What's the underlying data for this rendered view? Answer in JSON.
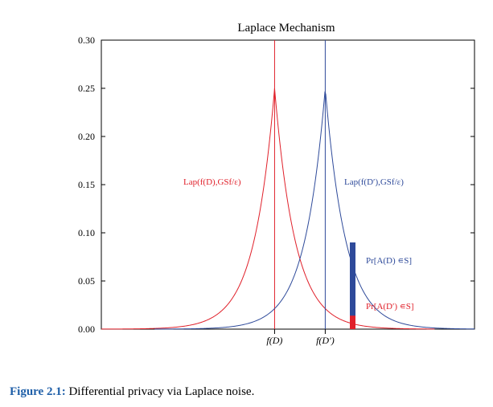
{
  "chart_data": {
    "type": "line",
    "title": "Laplace Mechanism",
    "xlabel": "",
    "ylabel": "",
    "ylim": [
      0,
      0.3
    ],
    "xlim": [
      -5.2,
      6.0
    ],
    "yticks": [
      "0.00",
      "0.05",
      "0.10",
      "0.15",
      "0.20",
      "0.25",
      "0.30"
    ],
    "xticks": [
      {
        "x": 0,
        "label": "f(D)"
      },
      {
        "x": 1.52,
        "label": "f(D′)"
      }
    ],
    "grid": false,
    "series": [
      {
        "name": "Lap(f(D),GSf/ε)",
        "color": "#e0202a",
        "center": 0,
        "scale": 2,
        "x_range": [
          -5.2,
          4.8
        ]
      },
      {
        "name": "Lap(f(D′),GSf/ε)",
        "color": "#2e4a9a",
        "center": 1.52,
        "scale": 2,
        "x_range": [
          -3.6,
          6.0
        ]
      }
    ],
    "bars": [
      {
        "x": 2.3,
        "y": 0.09,
        "label": "Pr[A(D) ∊S]",
        "color": "#2e4a9a"
      },
      {
        "x": 2.3,
        "y": 0.014,
        "label": "Pr[A(D′) ∊S]",
        "color": "#e0202a"
      }
    ]
  },
  "caption": {
    "label": "Figure 2.1:",
    "text": "Differential privacy via Laplace noise."
  }
}
